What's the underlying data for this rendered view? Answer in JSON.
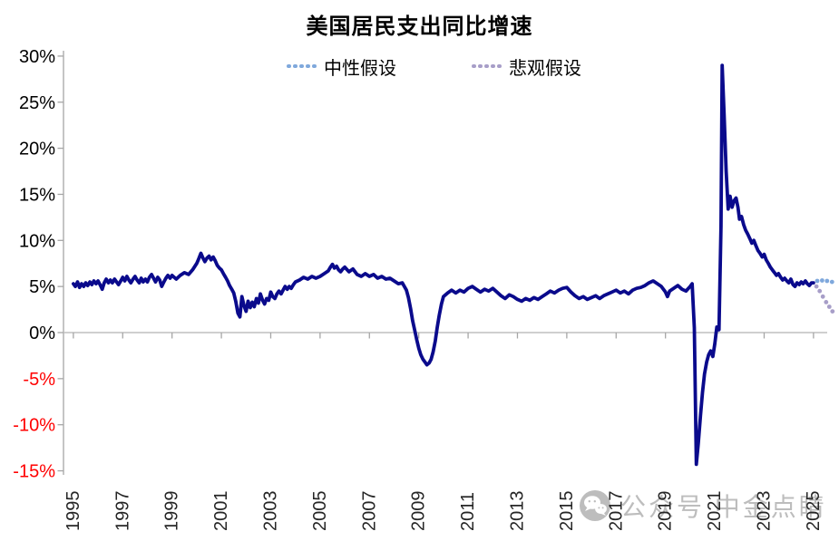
{
  "title": "美国居民支出同比增速",
  "legend": [
    {
      "label": "中性假设",
      "color": "#7FA8DC"
    },
    {
      "label": "悲观假设",
      "color": "#A79EC8"
    }
  ],
  "watermark": {
    "icon": "wechat-icon",
    "text": "公众号 中金点睛"
  },
  "colors": {
    "history_line": "#0A0A8C",
    "neutral_dots": "#7FA8DC",
    "pessimistic_dots": "#A79EC8",
    "axis": "#A6A6A6",
    "zero_line": "#BFBFBF",
    "positive_tick_label": "#000000",
    "negative_tick_label": "#FF0000",
    "x_tick_label": "#262626",
    "watermark": "#BDBDBD"
  },
  "chart_data": {
    "type": "line",
    "title": "美国居民支出同比增速",
    "xlabel": "",
    "ylabel": "",
    "ylim": [
      -15,
      30
    ],
    "xlim": [
      1994.6,
      2026.2
    ],
    "ytick_values": [
      30,
      25,
      20,
      15,
      10,
      5,
      0,
      -5,
      -10,
      -15
    ],
    "ytick_labels": [
      "30%",
      "25%",
      "20%",
      "15%",
      "10%",
      "5%",
      "0%",
      "-5%",
      "-10%",
      "-15%"
    ],
    "xtick_values": [
      1995,
      1997,
      1999,
      2001,
      2003,
      2005,
      2007,
      2009,
      2011,
      2013,
      2015,
      2017,
      2019,
      2021,
      2023,
      2025
    ],
    "xtick_labels": [
      "1995",
      "1997",
      "1999",
      "2001",
      "2003",
      "2005",
      "2007",
      "2009",
      "2011",
      "2013",
      "2015",
      "2017",
      "2019",
      "2021",
      "2023",
      "2025"
    ],
    "grid": "zero-line-only",
    "legend_position": "top-center",
    "series": [
      {
        "name": "",
        "style": "solid",
        "color": "#0A0A8C",
        "data": [
          [
            1995.0,
            5.3
          ],
          [
            1995.08,
            5.0
          ],
          [
            1995.17,
            5.5
          ],
          [
            1995.25,
            4.9
          ],
          [
            1995.33,
            5.3
          ],
          [
            1995.42,
            5.0
          ],
          [
            1995.5,
            5.4
          ],
          [
            1995.58,
            5.1
          ],
          [
            1995.67,
            5.5
          ],
          [
            1995.75,
            5.2
          ],
          [
            1995.83,
            5.6
          ],
          [
            1995.92,
            5.3
          ],
          [
            1996.0,
            5.6
          ],
          [
            1996.08,
            5.2
          ],
          [
            1996.17,
            4.7
          ],
          [
            1996.25,
            5.4
          ],
          [
            1996.33,
            5.8
          ],
          [
            1996.42,
            5.4
          ],
          [
            1996.5,
            5.7
          ],
          [
            1996.58,
            5.4
          ],
          [
            1996.67,
            5.8
          ],
          [
            1996.75,
            5.5
          ],
          [
            1996.83,
            5.2
          ],
          [
            1996.92,
            5.6
          ],
          [
            1997.0,
            6.0
          ],
          [
            1997.08,
            5.6
          ],
          [
            1997.17,
            6.1
          ],
          [
            1997.25,
            5.7
          ],
          [
            1997.33,
            5.4
          ],
          [
            1997.42,
            5.8
          ],
          [
            1997.5,
            6.1
          ],
          [
            1997.58,
            5.7
          ],
          [
            1997.67,
            5.4
          ],
          [
            1997.75,
            5.9
          ],
          [
            1997.83,
            5.5
          ],
          [
            1997.92,
            5.8
          ],
          [
            1998.0,
            5.5
          ],
          [
            1998.08,
            6.0
          ],
          [
            1998.17,
            6.3
          ],
          [
            1998.25,
            5.9
          ],
          [
            1998.33,
            5.5
          ],
          [
            1998.42,
            6.0
          ],
          [
            1998.5,
            5.7
          ],
          [
            1998.58,
            5.0
          ],
          [
            1998.67,
            5.5
          ],
          [
            1998.75,
            5.9
          ],
          [
            1998.83,
            6.2
          ],
          [
            1998.92,
            5.9
          ],
          [
            1999.0,
            6.2
          ],
          [
            1999.17,
            5.8
          ],
          [
            1999.33,
            6.2
          ],
          [
            1999.5,
            6.5
          ],
          [
            1999.67,
            6.3
          ],
          [
            1999.83,
            6.8
          ],
          [
            2000.0,
            7.5
          ],
          [
            2000.08,
            8.0
          ],
          [
            2000.17,
            8.6
          ],
          [
            2000.25,
            8.1
          ],
          [
            2000.33,
            7.7
          ],
          [
            2000.42,
            8.1
          ],
          [
            2000.5,
            8.3
          ],
          [
            2000.58,
            7.9
          ],
          [
            2000.67,
            8.2
          ],
          [
            2000.75,
            7.8
          ],
          [
            2000.83,
            7.3
          ],
          [
            2000.92,
            7.0
          ],
          [
            2001.0,
            6.8
          ],
          [
            2001.08,
            6.4
          ],
          [
            2001.17,
            6.0
          ],
          [
            2001.25,
            5.6
          ],
          [
            2001.33,
            5.1
          ],
          [
            2001.42,
            4.7
          ],
          [
            2001.5,
            4.3
          ],
          [
            2001.58,
            3.4
          ],
          [
            2001.67,
            2.1
          ],
          [
            2001.75,
            1.7
          ],
          [
            2001.83,
            3.9
          ],
          [
            2001.92,
            2.9
          ],
          [
            2002.0,
            2.3
          ],
          [
            2002.08,
            3.4
          ],
          [
            2002.17,
            2.7
          ],
          [
            2002.25,
            3.3
          ],
          [
            2002.33,
            2.8
          ],
          [
            2002.42,
            3.7
          ],
          [
            2002.5,
            3.2
          ],
          [
            2002.58,
            4.2
          ],
          [
            2002.67,
            3.5
          ],
          [
            2002.75,
            3.1
          ],
          [
            2002.83,
            3.7
          ],
          [
            2002.92,
            3.5
          ],
          [
            2003.0,
            4.4
          ],
          [
            2003.08,
            3.9
          ],
          [
            2003.17,
            3.7
          ],
          [
            2003.25,
            4.2
          ],
          [
            2003.33,
            4.5
          ],
          [
            2003.42,
            4.2
          ],
          [
            2003.5,
            4.6
          ],
          [
            2003.58,
            5.0
          ],
          [
            2003.67,
            4.7
          ],
          [
            2003.75,
            5.0
          ],
          [
            2003.83,
            4.8
          ],
          [
            2003.92,
            5.2
          ],
          [
            2004.0,
            5.5
          ],
          [
            2004.17,
            5.7
          ],
          [
            2004.33,
            6.0
          ],
          [
            2004.5,
            5.8
          ],
          [
            2004.67,
            6.1
          ],
          [
            2004.83,
            5.9
          ],
          [
            2005.0,
            6.1
          ],
          [
            2005.17,
            6.4
          ],
          [
            2005.33,
            6.7
          ],
          [
            2005.42,
            7.1
          ],
          [
            2005.5,
            7.4
          ],
          [
            2005.58,
            7.0
          ],
          [
            2005.67,
            7.2
          ],
          [
            2005.75,
            6.8
          ],
          [
            2005.83,
            6.6
          ],
          [
            2005.92,
            6.9
          ],
          [
            2006.0,
            7.1
          ],
          [
            2006.17,
            6.6
          ],
          [
            2006.33,
            6.9
          ],
          [
            2006.5,
            6.3
          ],
          [
            2006.67,
            6.1
          ],
          [
            2006.83,
            6.4
          ],
          [
            2007.0,
            6.1
          ],
          [
            2007.17,
            6.3
          ],
          [
            2007.33,
            5.9
          ],
          [
            2007.5,
            6.1
          ],
          [
            2007.67,
            5.8
          ],
          [
            2007.83,
            5.9
          ],
          [
            2008.0,
            5.6
          ],
          [
            2008.17,
            5.3
          ],
          [
            2008.33,
            5.4
          ],
          [
            2008.5,
            4.6
          ],
          [
            2008.58,
            3.8
          ],
          [
            2008.67,
            2.6
          ],
          [
            2008.75,
            1.3
          ],
          [
            2008.83,
            0.3
          ],
          [
            2008.92,
            -0.8
          ],
          [
            2009.0,
            -1.7
          ],
          [
            2009.08,
            -2.4
          ],
          [
            2009.17,
            -2.9
          ],
          [
            2009.25,
            -3.2
          ],
          [
            2009.33,
            -3.5
          ],
          [
            2009.42,
            -3.3
          ],
          [
            2009.5,
            -2.9
          ],
          [
            2009.58,
            -2.1
          ],
          [
            2009.67,
            -0.9
          ],
          [
            2009.75,
            0.6
          ],
          [
            2009.83,
            1.9
          ],
          [
            2009.92,
            3.1
          ],
          [
            2010.0,
            3.9
          ],
          [
            2010.17,
            4.3
          ],
          [
            2010.33,
            4.6
          ],
          [
            2010.5,
            4.3
          ],
          [
            2010.67,
            4.6
          ],
          [
            2010.83,
            4.4
          ],
          [
            2011.0,
            4.8
          ],
          [
            2011.17,
            5.0
          ],
          [
            2011.33,
            4.7
          ],
          [
            2011.5,
            4.4
          ],
          [
            2011.67,
            4.7
          ],
          [
            2011.83,
            4.5
          ],
          [
            2012.0,
            4.8
          ],
          [
            2012.17,
            4.4
          ],
          [
            2012.33,
            4.0
          ],
          [
            2012.5,
            3.7
          ],
          [
            2012.67,
            4.1
          ],
          [
            2012.83,
            3.9
          ],
          [
            2013.0,
            3.6
          ],
          [
            2013.17,
            3.4
          ],
          [
            2013.33,
            3.7
          ],
          [
            2013.5,
            3.5
          ],
          [
            2013.67,
            3.8
          ],
          [
            2013.83,
            3.6
          ],
          [
            2014.0,
            3.9
          ],
          [
            2014.17,
            4.2
          ],
          [
            2014.33,
            4.5
          ],
          [
            2014.5,
            4.3
          ],
          [
            2014.67,
            4.6
          ],
          [
            2014.83,
            4.8
          ],
          [
            2015.0,
            4.9
          ],
          [
            2015.17,
            4.4
          ],
          [
            2015.33,
            4.0
          ],
          [
            2015.5,
            3.7
          ],
          [
            2015.67,
            3.9
          ],
          [
            2015.83,
            3.6
          ],
          [
            2016.0,
            3.8
          ],
          [
            2016.17,
            4.0
          ],
          [
            2016.33,
            3.7
          ],
          [
            2016.5,
            4.0
          ],
          [
            2016.67,
            4.2
          ],
          [
            2016.83,
            4.4
          ],
          [
            2017.0,
            4.6
          ],
          [
            2017.17,
            4.3
          ],
          [
            2017.33,
            4.5
          ],
          [
            2017.5,
            4.2
          ],
          [
            2017.67,
            4.6
          ],
          [
            2017.83,
            4.8
          ],
          [
            2018.0,
            4.9
          ],
          [
            2018.17,
            5.1
          ],
          [
            2018.33,
            5.4
          ],
          [
            2018.5,
            5.6
          ],
          [
            2018.67,
            5.3
          ],
          [
            2018.83,
            5.0
          ],
          [
            2019.0,
            4.4
          ],
          [
            2019.08,
            3.9
          ],
          [
            2019.17,
            4.5
          ],
          [
            2019.33,
            4.8
          ],
          [
            2019.5,
            5.1
          ],
          [
            2019.67,
            4.7
          ],
          [
            2019.83,
            4.5
          ],
          [
            2020.0,
            5.0
          ],
          [
            2020.08,
            5.3
          ],
          [
            2020.17,
            0.5
          ],
          [
            2020.25,
            -14.3
          ],
          [
            2020.33,
            -12.0
          ],
          [
            2020.42,
            -9.0
          ],
          [
            2020.5,
            -6.5
          ],
          [
            2020.58,
            -4.5
          ],
          [
            2020.67,
            -3.2
          ],
          [
            2020.75,
            -2.4
          ],
          [
            2020.83,
            -2.0
          ],
          [
            2020.92,
            -2.6
          ],
          [
            2021.0,
            -1.2
          ],
          [
            2021.08,
            0.6
          ],
          [
            2021.17,
            0.3
          ],
          [
            2021.25,
            11.5
          ],
          [
            2021.3,
            29.0
          ],
          [
            2021.38,
            23.5
          ],
          [
            2021.46,
            17.5
          ],
          [
            2021.54,
            13.4
          ],
          [
            2021.62,
            14.8
          ],
          [
            2021.7,
            13.6
          ],
          [
            2021.78,
            14.3
          ],
          [
            2021.86,
            14.6
          ],
          [
            2021.94,
            13.6
          ],
          [
            2022.0,
            12.3
          ],
          [
            2022.08,
            12.6
          ],
          [
            2022.17,
            11.7
          ],
          [
            2022.25,
            11.1
          ],
          [
            2022.33,
            10.7
          ],
          [
            2022.42,
            10.2
          ],
          [
            2022.5,
            9.7
          ],
          [
            2022.58,
            10.0
          ],
          [
            2022.67,
            9.4
          ],
          [
            2022.75,
            8.9
          ],
          [
            2022.83,
            8.6
          ],
          [
            2022.92,
            8.2
          ],
          [
            2023.0,
            8.5
          ],
          [
            2023.08,
            7.9
          ],
          [
            2023.17,
            7.5
          ],
          [
            2023.25,
            7.1
          ],
          [
            2023.33,
            6.8
          ],
          [
            2023.42,
            6.5
          ],
          [
            2023.5,
            6.2
          ],
          [
            2023.58,
            6.4
          ],
          [
            2023.67,
            6.0
          ],
          [
            2023.75,
            5.7
          ],
          [
            2023.83,
            5.9
          ],
          [
            2023.92,
            5.6
          ],
          [
            2024.0,
            5.4
          ],
          [
            2024.08,
            5.8
          ],
          [
            2024.17,
            5.2
          ],
          [
            2024.25,
            5.0
          ],
          [
            2024.33,
            5.4
          ],
          [
            2024.42,
            5.2
          ],
          [
            2024.5,
            5.5
          ],
          [
            2024.58,
            5.3
          ],
          [
            2024.67,
            5.6
          ],
          [
            2024.75,
            5.3
          ],
          [
            2024.83,
            5.1
          ],
          [
            2024.92,
            5.4
          ],
          [
            2025.0,
            5.4
          ]
        ]
      },
      {
        "name": "中性假设",
        "style": "dotted",
        "color": "#7FA8DC",
        "data": [
          [
            2025.15,
            5.6
          ],
          [
            2025.35,
            5.65
          ],
          [
            2025.55,
            5.6
          ],
          [
            2025.75,
            5.5
          ]
        ]
      },
      {
        "name": "悲观假设",
        "style": "dotted",
        "color": "#A79EC8",
        "data": [
          [
            2025.12,
            5.0
          ],
          [
            2025.25,
            4.5
          ],
          [
            2025.38,
            3.9
          ],
          [
            2025.51,
            3.3
          ],
          [
            2025.64,
            2.8
          ],
          [
            2025.77,
            2.3
          ]
        ]
      }
    ]
  }
}
